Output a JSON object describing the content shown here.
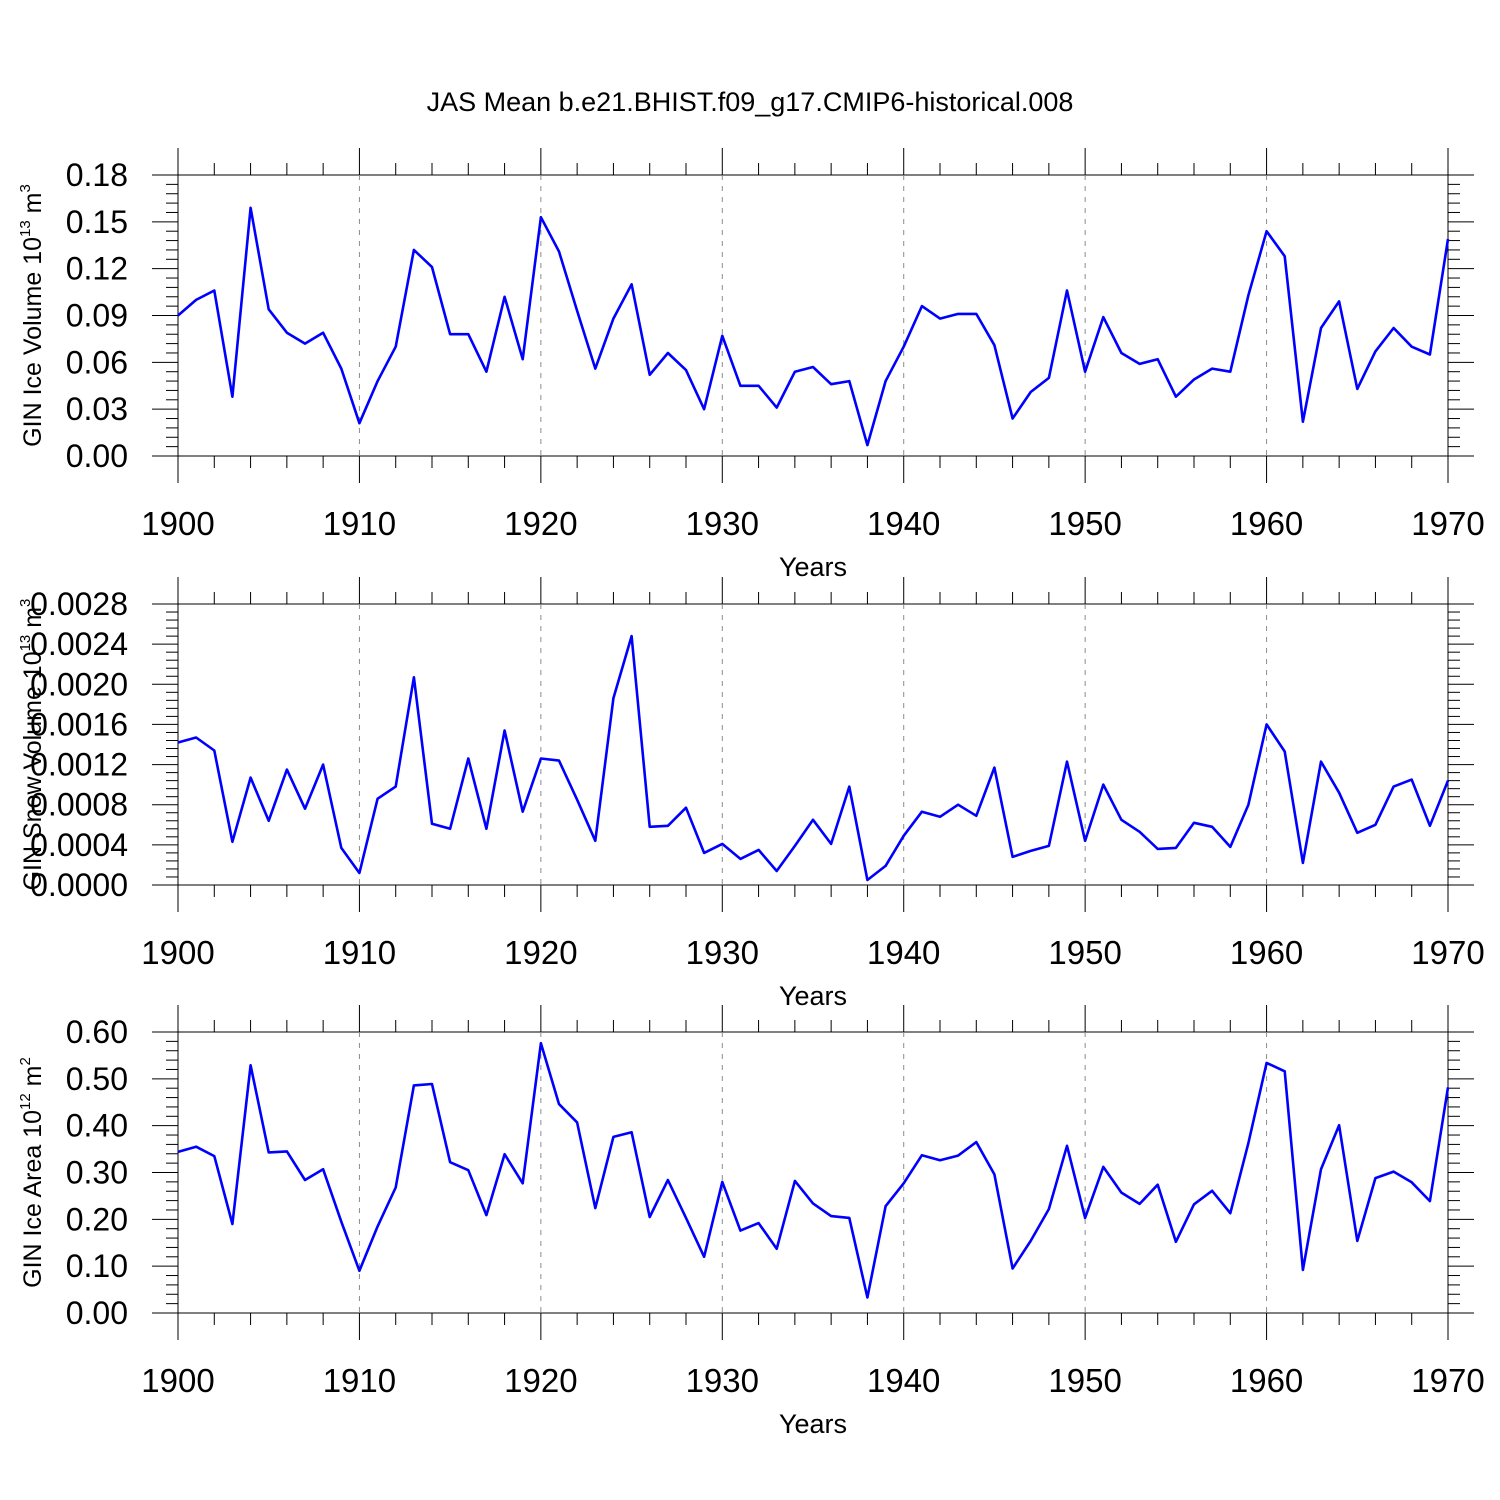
{
  "figure_title": "JAS Mean b.e21.BHIST.f09_g17.CMIP6-historical.008",
  "colors": {
    "line": "#0000ff",
    "axis": "#000000",
    "grid": "#8c8c8c"
  },
  "chart_data": [
    {
      "type": "line",
      "title": "JAS Mean b.e21.BHIST.f09_g17.CMIP6-historical.008",
      "xlabel": "Years",
      "ylabel_base": "GIN Ice Volume 10",
      "ylabel_exp": "13",
      "ylabel_unit": " m",
      "ylabel_unit_exp": "3",
      "xlim": [
        1900,
        1970
      ],
      "ylim": [
        0,
        0.18
      ],
      "grid": "vertical dashed at every 10 years",
      "x_ticks": [
        "1900",
        "1910",
        "1920",
        "1930",
        "1940",
        "1950",
        "1960",
        "1970"
      ],
      "y_ticks": [
        "0.00",
        "0.03",
        "0.06",
        "0.09",
        "0.12",
        "0.15",
        "0.18"
      ],
      "x_start": 1900,
      "values": [
        0.09,
        0.1,
        0.106,
        0.038,
        0.159,
        0.094,
        0.079,
        0.072,
        0.079,
        0.056,
        0.021,
        0.048,
        0.07,
        0.132,
        0.121,
        0.078,
        0.078,
        0.054,
        0.102,
        0.062,
        0.153,
        0.131,
        0.093,
        0.056,
        0.088,
        0.11,
        0.052,
        0.066,
        0.055,
        0.03,
        0.077,
        0.045,
        0.045,
        0.031,
        0.054,
        0.057,
        0.046,
        0.048,
        0.007,
        0.048,
        0.07,
        0.096,
        0.088,
        0.091,
        0.091,
        0.071,
        0.024,
        0.041,
        0.05,
        0.106,
        0.054,
        0.089,
        0.066,
        0.059,
        0.062,
        0.038,
        0.049,
        0.056,
        0.054,
        0.103,
        0.144,
        0.128,
        0.022,
        0.082,
        0.099,
        0.043,
        0.067,
        0.082,
        0.07,
        0.065,
        0.139
      ]
    },
    {
      "type": "line",
      "xlabel": "Years",
      "ylabel_base": "GIN Snow Volume 10",
      "ylabel_exp": "13",
      "ylabel_unit": " m",
      "ylabel_unit_exp": "3",
      "xlim": [
        1900,
        1970
      ],
      "ylim": [
        0,
        0.0028
      ],
      "grid": "vertical dashed at every 10 years",
      "x_ticks": [
        "1900",
        "1910",
        "1920",
        "1930",
        "1940",
        "1950",
        "1960",
        "1970"
      ],
      "y_ticks": [
        "0.0000",
        "0.0004",
        "0.0008",
        "0.0012",
        "0.0016",
        "0.0020",
        "0.0024",
        "0.0028"
      ],
      "x_start": 1900,
      "values": [
        0.00142,
        0.00147,
        0.00134,
        0.00043,
        0.00107,
        0.00064,
        0.00115,
        0.00076,
        0.0012,
        0.00037,
        0.00012,
        0.00086,
        0.00098,
        0.00207,
        0.00061,
        0.00056,
        0.00126,
        0.00056,
        0.00154,
        0.00073,
        0.00126,
        0.00124,
        0.00085,
        0.00044,
        0.00186,
        0.00248,
        0.00058,
        0.00059,
        0.00077,
        0.00032,
        0.00041,
        0.00026,
        0.00035,
        0.00014,
        0.00039,
        0.00065,
        0.00041,
        0.00098,
        5e-05,
        0.00019,
        0.00049,
        0.00073,
        0.00068,
        0.0008,
        0.00069,
        0.00117,
        0.00028,
        0.00034,
        0.00039,
        0.00123,
        0.00044,
        0.001,
        0.00065,
        0.00053,
        0.00036,
        0.00037,
        0.00062,
        0.00058,
        0.00038,
        0.0008,
        0.0016,
        0.00133,
        0.00022,
        0.00123,
        0.00092,
        0.00052,
        0.0006,
        0.00098,
        0.00105,
        0.00059,
        0.00104
      ]
    },
    {
      "type": "line",
      "xlabel": "Years",
      "ylabel_base": "GIN Ice Area 10",
      "ylabel_exp": "12",
      "ylabel_unit": " m",
      "ylabel_unit_exp": "2",
      "xlim": [
        1900,
        1970
      ],
      "ylim": [
        0,
        0.6
      ],
      "grid": "vertical dashed at every 10 years",
      "x_ticks": [
        "1900",
        "1910",
        "1920",
        "1930",
        "1940",
        "1950",
        "1960",
        "1970"
      ],
      "y_ticks": [
        "0.00",
        "0.10",
        "0.20",
        "0.30",
        "0.40",
        "0.50",
        "0.60"
      ],
      "x_start": 1900,
      "values": [
        0.344,
        0.355,
        0.335,
        0.19,
        0.529,
        0.343,
        0.345,
        0.284,
        0.307,
        0.195,
        0.09,
        0.185,
        0.268,
        0.486,
        0.489,
        0.322,
        0.305,
        0.209,
        0.339,
        0.277,
        0.576,
        0.446,
        0.407,
        0.224,
        0.376,
        0.386,
        0.205,
        0.284,
        0.203,
        0.12,
        0.28,
        0.176,
        0.192,
        0.137,
        0.282,
        0.234,
        0.207,
        0.203,
        0.033,
        0.228,
        0.277,
        0.337,
        0.326,
        0.336,
        0.365,
        0.296,
        0.095,
        0.154,
        0.222,
        0.357,
        0.203,
        0.312,
        0.257,
        0.233,
        0.274,
        0.152,
        0.232,
        0.261,
        0.213,
        0.363,
        0.534,
        0.516,
        0.092,
        0.307,
        0.401,
        0.154,
        0.288,
        0.302,
        0.279,
        0.239,
        0.482
      ]
    }
  ]
}
